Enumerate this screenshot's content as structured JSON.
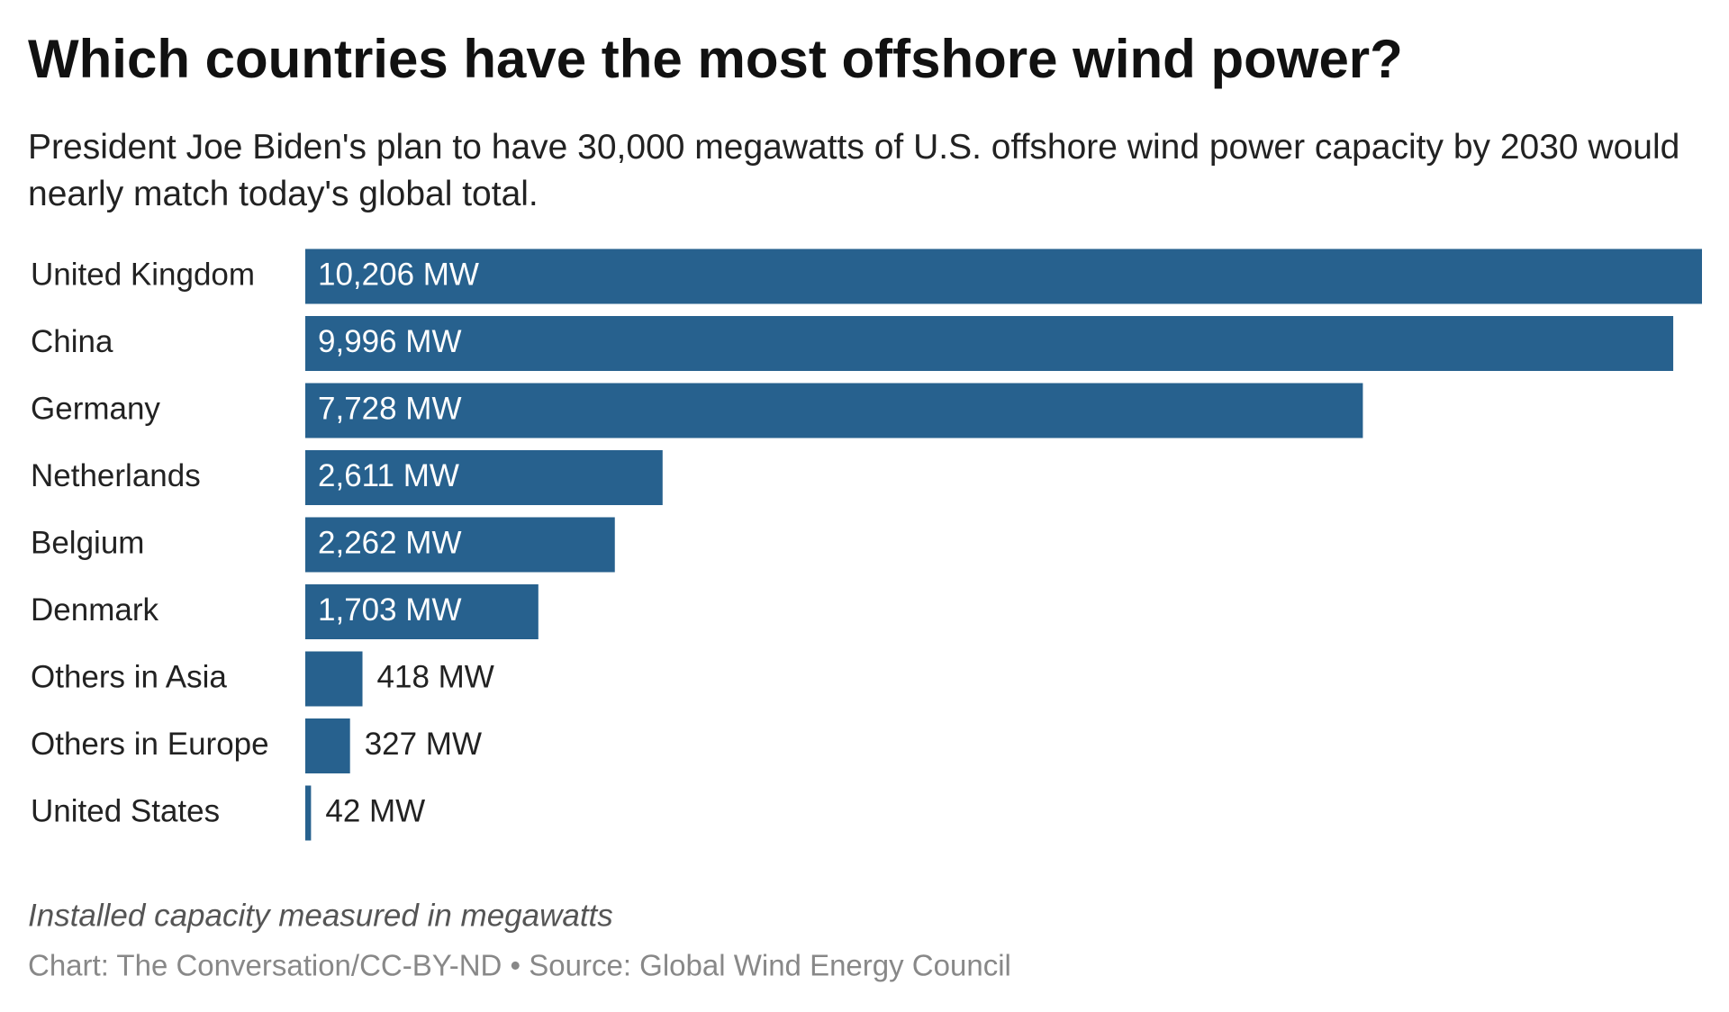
{
  "chart_data": {
    "type": "bar",
    "orientation": "horizontal",
    "title": "Which countries have the most offshore wind power?",
    "subtitle": "President Joe Biden's plan to have 30,000 megawatts of U.S. offshore wind power capacity by 2030 would nearly match today's global total.",
    "categories": [
      "United Kingdom",
      "China",
      "Germany",
      "Netherlands",
      "Belgium",
      "Denmark",
      "Others in Asia",
      "Others in Europe",
      "United States"
    ],
    "values": [
      10206,
      9996,
      7728,
      2611,
      2262,
      1703,
      418,
      327,
      42
    ],
    "value_labels": [
      "10,206 MW",
      "9,996 MW",
      "7,728 MW",
      "2,611 MW",
      "2,262 MW",
      "1,703 MW",
      "418 MW",
      "327 MW",
      "42 MW"
    ],
    "color": "#27618e",
    "xlim": [
      0,
      10206
    ],
    "note": "Installed capacity measured in megawatts",
    "source": "Chart: The Conversation/CC-BY-ND • Source: Global Wind Energy Council"
  }
}
